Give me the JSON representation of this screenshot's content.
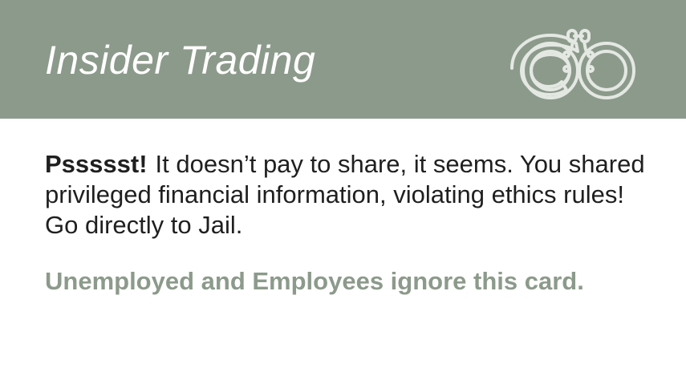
{
  "card": {
    "title": "Insider Trading",
    "lead": "Pssssst!",
    "body": "It doesn’t pay to share, it seems. You shared privileged financial information, violating ethics rules! Go directly to Jail.",
    "exception": "Unemployed and Employees ignore this card.",
    "icon": "handcuffs-icon",
    "colors": {
      "header_bg": "#8c9a8b",
      "title_text": "#ffffff",
      "body_text": "#1f1f1f",
      "accent_text": "#8c9a8b"
    }
  }
}
